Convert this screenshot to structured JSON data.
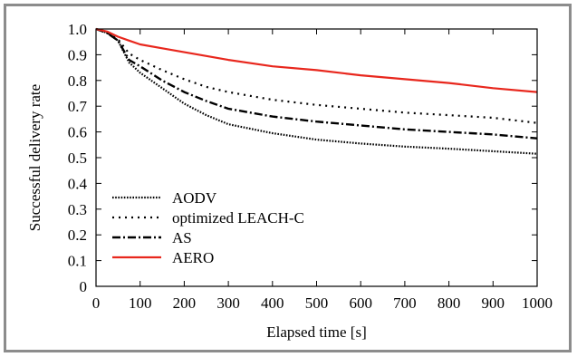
{
  "chart_data": {
    "type": "line",
    "title": "",
    "xlabel": "Elapsed time [s]",
    "ylabel": "Successful delivery rate",
    "xlim": [
      0,
      1000
    ],
    "ylim": [
      0,
      1.0
    ],
    "x_ticks": [
      "0",
      "100",
      "200",
      "300",
      "400",
      "500",
      "600",
      "700",
      "800",
      "900",
      "1000"
    ],
    "y_ticks": [
      "0",
      "0.1",
      "0.2",
      "0.3",
      "0.4",
      "0.5",
      "0.6",
      "0.7",
      "0.8",
      "0.9",
      "1.0"
    ],
    "grid": false,
    "legend_position": "bottom-left",
    "x": [
      0,
      25,
      50,
      75,
      100,
      150,
      200,
      250,
      300,
      400,
      500,
      600,
      700,
      800,
      900,
      1000
    ],
    "series": [
      {
        "name": "AODV",
        "color": "#000000",
        "dash": "dotted-dense",
        "values": [
          1.0,
          0.985,
          0.955,
          0.87,
          0.83,
          0.77,
          0.71,
          0.665,
          0.63,
          0.595,
          0.57,
          0.555,
          0.543,
          0.535,
          0.525,
          0.515
        ]
      },
      {
        "name": "optimized LEACH-C",
        "color": "#000000",
        "dash": "dotted-sparse",
        "values": [
          1.0,
          0.985,
          0.96,
          0.905,
          0.88,
          0.84,
          0.805,
          0.775,
          0.755,
          0.725,
          0.705,
          0.69,
          0.675,
          0.665,
          0.655,
          0.635
        ]
      },
      {
        "name": "AS",
        "color": "#000000",
        "dash": "dash-dot",
        "values": [
          1.0,
          0.985,
          0.955,
          0.88,
          0.855,
          0.8,
          0.755,
          0.72,
          0.69,
          0.66,
          0.64,
          0.625,
          0.61,
          0.6,
          0.59,
          0.575
        ]
      },
      {
        "name": "AERO",
        "color": "#e8271d",
        "dash": "solid",
        "values": [
          1.0,
          0.99,
          0.97,
          0.955,
          0.94,
          0.925,
          0.91,
          0.895,
          0.88,
          0.855,
          0.84,
          0.82,
          0.805,
          0.79,
          0.77,
          0.755
        ]
      }
    ]
  }
}
